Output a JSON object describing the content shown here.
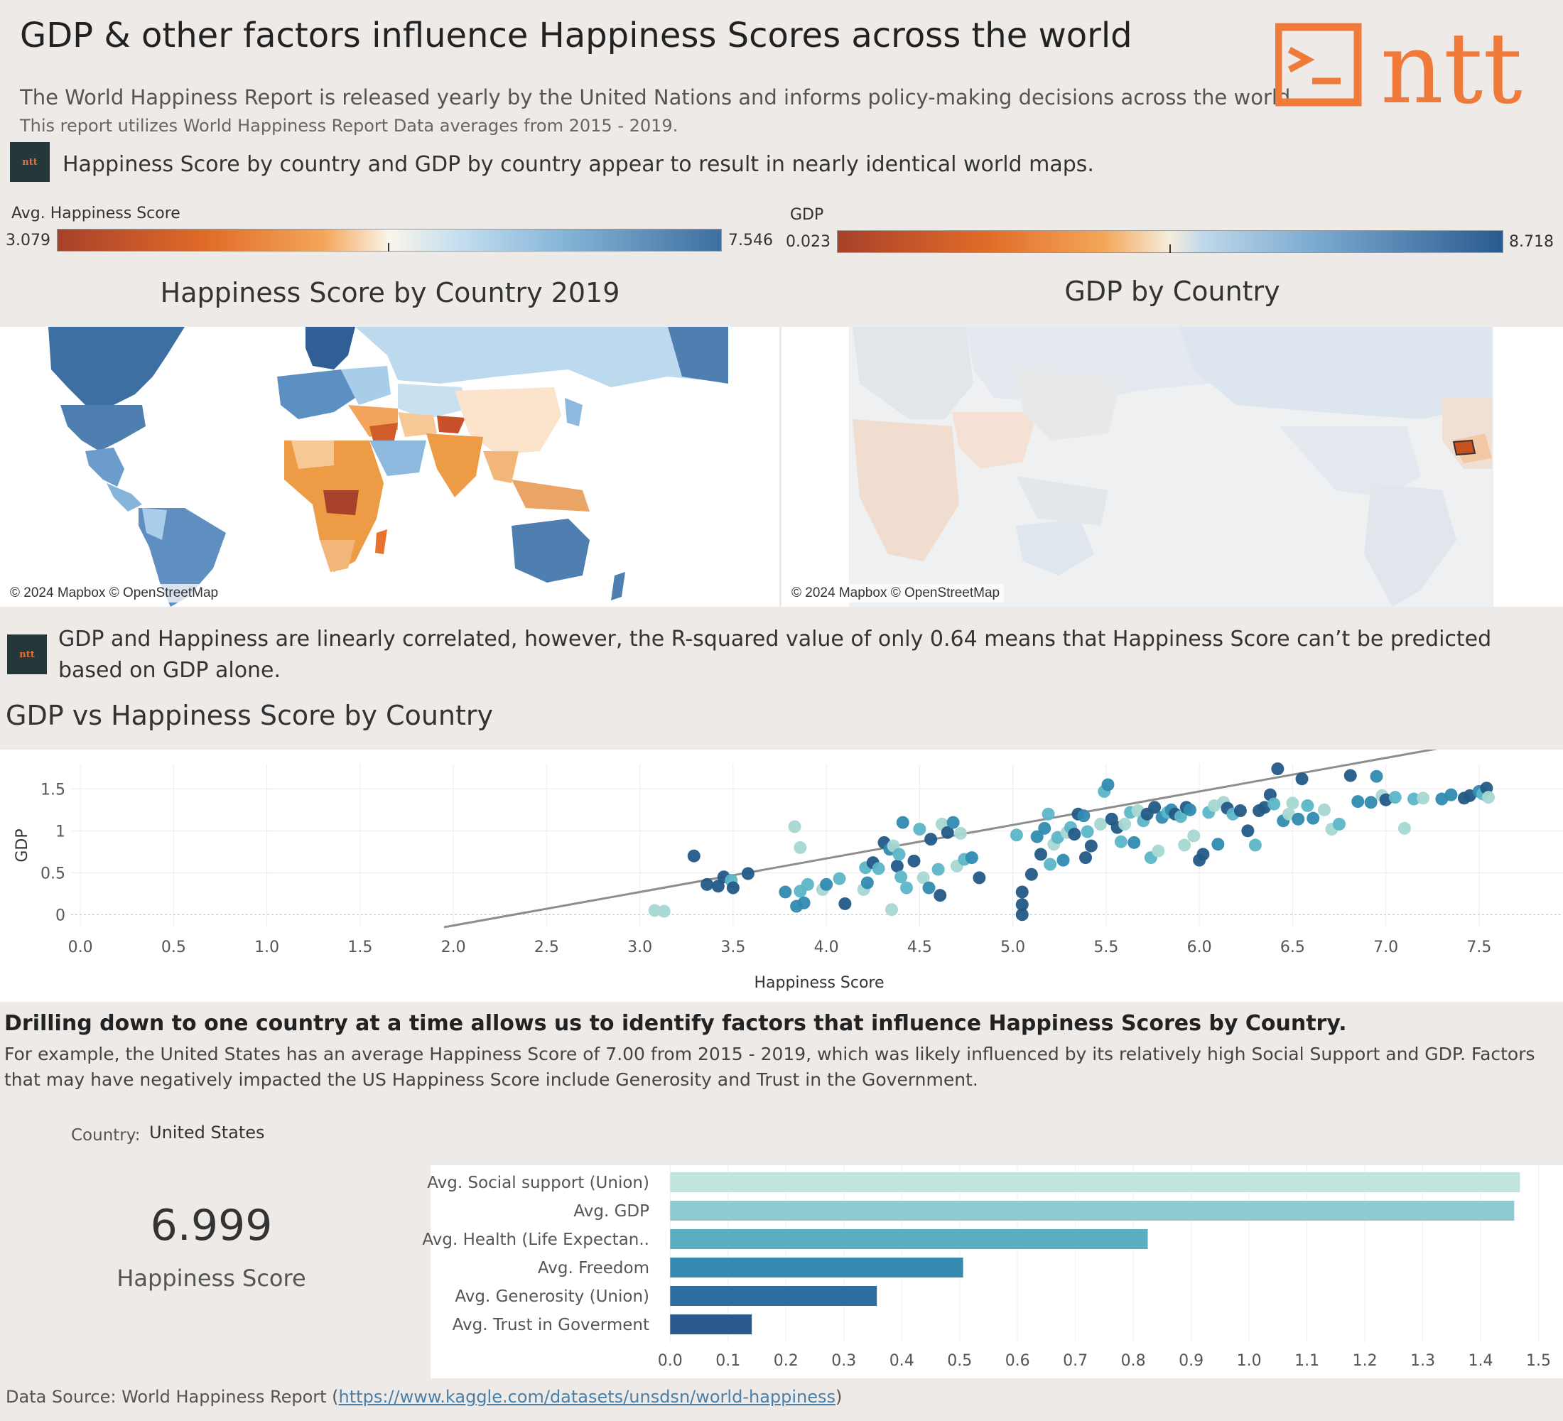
{
  "header": {
    "title": "GDP & other factors influence Happiness Scores across the world",
    "intro": "The World Happiness Report is released yearly by the United Nations and informs policy-making decisions across the world.",
    "intro2": "This report utilizes World Happiness Report Data averages from 2015 - 2019.",
    "logo_text": "ntt",
    "logo_color": "#f07a3a"
  },
  "insight1": {
    "badge": "ntt",
    "text": "Happiness Score by country and GDP by country appear to result in nearly identical world maps."
  },
  "legends": {
    "happiness": {
      "label": "Avg. Happiness Score",
      "min": "3.079",
      "max": "7.546"
    },
    "gdp": {
      "label": "GDP",
      "min": "0.023",
      "max": "8.718"
    }
  },
  "maps": {
    "happiness_title": "Happiness Score by Country 2019",
    "gdp_title": "GDP by Country",
    "credit": "© 2024 Mapbox © OpenStreetMap"
  },
  "insight2": {
    "badge": "ntt",
    "text": "GDP and Happiness are linearly correlated, however, the R-squared value of only 0.64 means that Happiness Score can’t be predicted based on GDP alone."
  },
  "scatter": {
    "title": "GDP vs Happiness Score by Country"
  },
  "drill": {
    "heading": "Drilling down to one country at a time allows us to identify factors that influence Happiness Scores by Country.",
    "text": "For example, the United States has an average Happiness Score of 7.00 from 2015 - 2019, which was likely influenced by its relatively high Social Support and GDP. Factors that may have negatively impacted the US Happiness Score include Generosity and Trust in the Government.",
    "country_label": "Country:",
    "country_value": "United States",
    "score": "6.999",
    "score_caption": "Happiness Score"
  },
  "source": {
    "prefix": "Data Source: World Happiness Report (",
    "url": "https://www.kaggle.com/datasets/unsdsn/world-happiness",
    "suffix": ")"
  },
  "chart_data": [
    {
      "type": "scatter",
      "title": "GDP vs Happiness Score by Country",
      "xlabel": "Happiness Score",
      "ylabel": "GDP",
      "xlim": [
        -0.05,
        7.95
      ],
      "ylim": [
        -0.15,
        1.8
      ],
      "xticks": [
        "0.0",
        "0.5",
        "1.0",
        "1.5",
        "2.0",
        "2.5",
        "3.0",
        "3.5",
        "4.0",
        "4.5",
        "5.0",
        "5.5",
        "6.0",
        "6.5",
        "7.0",
        "7.5"
      ],
      "yticks": [
        "0",
        "0.5",
        "1",
        "1.5"
      ],
      "trendline": {
        "slope": 0.4,
        "intercept": -0.93
      },
      "palette": [
        "#a7d8d3",
        "#5cb6c8",
        "#2f8bb0",
        "#235a86"
      ],
      "points": [
        [
          3.08,
          0.05,
          0
        ],
        [
          3.13,
          0.04,
          0
        ],
        [
          3.29,
          0.7,
          3
        ],
        [
          3.36,
          0.36,
          3
        ],
        [
          3.42,
          0.34,
          3
        ],
        [
          3.45,
          0.45,
          3
        ],
        [
          3.49,
          0.41,
          1
        ],
        [
          3.5,
          0.32,
          3
        ],
        [
          3.58,
          0.49,
          3
        ],
        [
          3.78,
          0.27,
          2
        ],
        [
          3.83,
          1.05,
          0
        ],
        [
          3.86,
          0.8,
          0
        ],
        [
          3.84,
          0.1,
          2
        ],
        [
          3.86,
          0.28,
          1
        ],
        [
          3.88,
          0.14,
          2
        ],
        [
          3.9,
          0.36,
          1
        ],
        [
          3.98,
          0.3,
          0
        ],
        [
          4.0,
          0.36,
          2
        ],
        [
          4.07,
          0.43,
          1
        ],
        [
          4.1,
          0.13,
          3
        ],
        [
          4.2,
          0.3,
          0
        ],
        [
          4.21,
          0.56,
          1
        ],
        [
          4.22,
          0.38,
          2
        ],
        [
          4.25,
          0.62,
          3
        ],
        [
          4.28,
          0.55,
          1
        ],
        [
          4.31,
          0.86,
          3
        ],
        [
          4.34,
          0.78,
          2
        ],
        [
          4.36,
          0.82,
          0
        ],
        [
          4.38,
          0.58,
          3
        ],
        [
          4.39,
          0.72,
          1
        ],
        [
          4.35,
          0.06,
          0
        ],
        [
          4.4,
          0.45,
          1
        ],
        [
          4.41,
          1.1,
          2
        ],
        [
          4.43,
          0.32,
          1
        ],
        [
          4.47,
          0.64,
          3
        ],
        [
          4.5,
          1.02,
          1
        ],
        [
          4.52,
          0.44,
          0
        ],
        [
          4.55,
          0.32,
          2
        ],
        [
          4.56,
          0.9,
          3
        ],
        [
          4.6,
          0.54,
          1
        ],
        [
          4.61,
          0.23,
          3
        ],
        [
          4.62,
          1.08,
          0
        ],
        [
          4.65,
          0.98,
          3
        ],
        [
          4.68,
          1.1,
          2
        ],
        [
          4.7,
          0.58,
          0
        ],
        [
          4.72,
          0.97,
          0
        ],
        [
          4.74,
          0.66,
          1
        ],
        [
          4.78,
          0.68,
          2
        ],
        [
          4.82,
          0.44,
          3
        ],
        [
          5.02,
          0.95,
          1
        ],
        [
          5.05,
          0.27,
          3
        ],
        [
          5.05,
          0.12,
          3
        ],
        [
          5.05,
          0.0,
          3
        ],
        [
          5.1,
          0.48,
          3
        ],
        [
          5.13,
          0.93,
          2
        ],
        [
          5.15,
          0.72,
          3
        ],
        [
          5.17,
          1.03,
          2
        ],
        [
          5.19,
          1.2,
          1
        ],
        [
          5.2,
          0.6,
          1
        ],
        [
          5.22,
          0.84,
          0
        ],
        [
          5.24,
          0.92,
          1
        ],
        [
          5.27,
          0.65,
          2
        ],
        [
          5.29,
          0.98,
          0
        ],
        [
          5.31,
          1.04,
          1
        ],
        [
          5.33,
          0.96,
          3
        ],
        [
          5.35,
          1.2,
          3
        ],
        [
          5.38,
          1.18,
          2
        ],
        [
          5.39,
          0.68,
          3
        ],
        [
          5.4,
          0.99,
          1
        ],
        [
          5.42,
          0.82,
          3
        ],
        [
          5.47,
          1.08,
          0
        ],
        [
          5.49,
          1.47,
          1
        ],
        [
          5.51,
          1.55,
          2
        ],
        [
          5.53,
          1.14,
          3
        ],
        [
          5.56,
          1.04,
          3
        ],
        [
          5.58,
          0.87,
          1
        ],
        [
          5.6,
          1.08,
          0
        ],
        [
          5.63,
          1.22,
          1
        ],
        [
          5.65,
          0.86,
          2
        ],
        [
          5.67,
          1.24,
          0
        ],
        [
          5.7,
          1.12,
          1
        ],
        [
          5.72,
          1.2,
          3
        ],
        [
          5.74,
          0.68,
          1
        ],
        [
          5.76,
          1.28,
          3
        ],
        [
          5.78,
          0.76,
          0
        ],
        [
          5.8,
          1.16,
          2
        ],
        [
          5.83,
          1.22,
          1
        ],
        [
          5.85,
          1.25,
          2
        ],
        [
          5.87,
          1.2,
          3
        ],
        [
          5.9,
          1.17,
          1
        ],
        [
          5.92,
          0.83,
          0
        ],
        [
          5.93,
          1.28,
          3
        ],
        [
          5.95,
          1.25,
          2
        ],
        [
          5.97,
          0.94,
          0
        ],
        [
          6.0,
          0.65,
          3
        ],
        [
          6.02,
          0.72,
          3
        ],
        [
          6.05,
          1.22,
          1
        ],
        [
          6.08,
          1.3,
          0
        ],
        [
          6.1,
          0.84,
          2
        ],
        [
          6.13,
          1.34,
          0
        ],
        [
          6.15,
          1.27,
          3
        ],
        [
          6.18,
          1.2,
          1
        ],
        [
          6.22,
          1.24,
          3
        ],
        [
          6.26,
          1.0,
          3
        ],
        [
          6.3,
          0.83,
          1
        ],
        [
          6.32,
          1.24,
          3
        ],
        [
          6.35,
          1.28,
          3
        ],
        [
          6.38,
          1.43,
          3
        ],
        [
          6.4,
          1.32,
          1
        ],
        [
          6.42,
          1.74,
          3
        ],
        [
          6.45,
          1.12,
          2
        ],
        [
          6.48,
          1.2,
          0
        ],
        [
          6.5,
          1.33,
          0
        ],
        [
          6.53,
          1.14,
          2
        ],
        [
          6.55,
          1.62,
          3
        ],
        [
          6.58,
          1.3,
          1
        ],
        [
          6.61,
          1.15,
          2
        ],
        [
          6.67,
          1.25,
          0
        ],
        [
          6.71,
          1.02,
          0
        ],
        [
          6.75,
          1.08,
          1
        ],
        [
          6.81,
          1.66,
          3
        ],
        [
          6.85,
          1.35,
          2
        ],
        [
          6.92,
          1.34,
          2
        ],
        [
          6.95,
          1.65,
          2
        ],
        [
          6.98,
          1.42,
          0
        ],
        [
          7.0,
          1.37,
          3
        ],
        [
          7.05,
          1.4,
          1
        ],
        [
          7.1,
          1.03,
          0
        ],
        [
          7.15,
          1.38,
          1
        ],
        [
          7.2,
          1.39,
          0
        ],
        [
          7.3,
          1.38,
          2
        ],
        [
          7.35,
          1.43,
          2
        ],
        [
          7.42,
          1.39,
          3
        ],
        [
          7.45,
          1.42,
          3
        ],
        [
          7.5,
          1.47,
          2
        ],
        [
          7.52,
          1.44,
          1
        ],
        [
          7.54,
          1.51,
          3
        ],
        [
          7.55,
          1.4,
          0
        ]
      ]
    },
    {
      "type": "bar",
      "title": "",
      "orientation": "horizontal",
      "categories": [
        "Avg. Social support (Union)",
        "Avg. GDP",
        "Avg. Health (Life Expectan..",
        "Avg. Freedom",
        "Avg. Generosity (Union)",
        "Avg. Trust in Goverment"
      ],
      "values": [
        1.468,
        1.458,
        0.825,
        0.506,
        0.357,
        0.141
      ],
      "colors": [
        "#bfe5dc",
        "#8dcbd0",
        "#5badc2",
        "#368ab0",
        "#2c6e9e",
        "#2a5a8c"
      ],
      "xlim": [
        -0.02,
        1.53
      ],
      "xticks": [
        "0.0",
        "0.1",
        "0.2",
        "0.3",
        "0.4",
        "0.5",
        "0.6",
        "0.7",
        "0.8",
        "0.9",
        "1.0",
        "1.1",
        "1.2",
        "1.3",
        "1.4",
        "1.5"
      ]
    }
  ]
}
